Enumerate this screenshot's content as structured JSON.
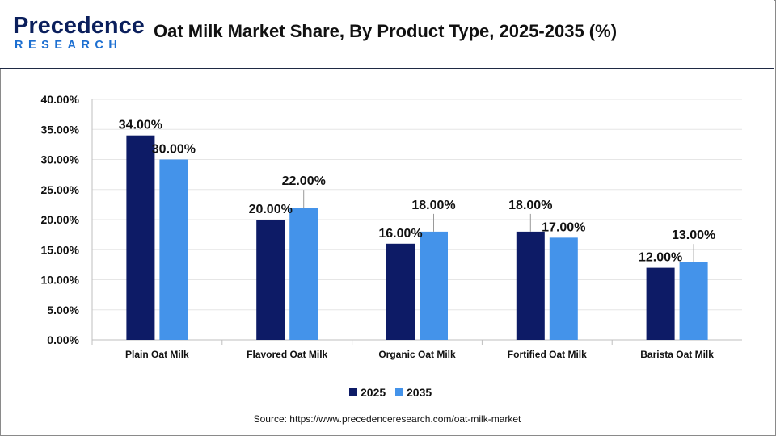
{
  "header": {
    "logo_top": "Precedence",
    "logo_bottom": "RESEARCH",
    "title": "Oat Milk Market Share, By Product Type, 2025-2035 (%)"
  },
  "chart_data": {
    "type": "bar",
    "title": "Oat Milk Market Share, By Product Type, 2025-2035 (%)",
    "xlabel": "",
    "ylabel": "",
    "categories": [
      "Plain Oat Milk",
      "Flavored Oat Milk",
      "Organic Oat Milk",
      "Fortified Oat Milk",
      "Barista Oat Milk"
    ],
    "series": [
      {
        "name": "2025",
        "values": [
          34,
          20,
          16,
          18,
          12
        ],
        "labels": [
          "34.00%",
          "20.00%",
          "16.00%",
          "18.00%",
          "12.00%"
        ],
        "color": "#0d1b66"
      },
      {
        "name": "2035",
        "values": [
          30,
          22,
          18,
          17,
          13
        ],
        "labels": [
          "30.00%",
          "22.00%",
          "18.00%",
          "17.00%",
          "13.00%"
        ],
        "color": "#4493ea"
      }
    ],
    "ylim": [
      0,
      40
    ],
    "yticks": [
      0,
      5,
      10,
      15,
      20,
      25,
      30,
      35,
      40
    ],
    "ytick_labels": [
      "0.00%",
      "5.00%",
      "10.00%",
      "15.00%",
      "20.00%",
      "25.00%",
      "30.00%",
      "35.00%",
      "40.00%"
    ],
    "grid": true,
    "legend_position": "bottom"
  },
  "source": "Source: https://www.precedenceresearch.com/oat-milk-market"
}
